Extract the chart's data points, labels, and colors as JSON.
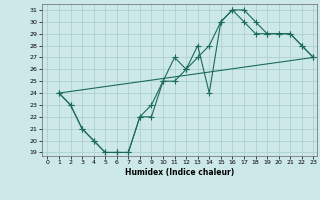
{
  "xlabel": "Humidex (Indice chaleur)",
  "bg_color": "#cde8e8",
  "grid_color": "#aacccc",
  "line_color": "#1a6b5a",
  "xlim": [
    -0.5,
    23.3
  ],
  "ylim": [
    18.7,
    31.5
  ],
  "xticks": [
    0,
    1,
    2,
    3,
    4,
    5,
    6,
    7,
    8,
    9,
    10,
    11,
    12,
    13,
    14,
    15,
    16,
    17,
    18,
    19,
    20,
    21,
    22,
    23
  ],
  "yticks": [
    19,
    20,
    21,
    22,
    23,
    24,
    25,
    26,
    27,
    28,
    29,
    30,
    31
  ],
  "line1_x": [
    1,
    2,
    3,
    4,
    5,
    6,
    7,
    8,
    9,
    10,
    11,
    12,
    13,
    14,
    15,
    16,
    17,
    18,
    19,
    20,
    21,
    22,
    23
  ],
  "line1_y": [
    24,
    23,
    21,
    20,
    19,
    19,
    19,
    22,
    22,
    25,
    27,
    26,
    28,
    24,
    30,
    31,
    31,
    30,
    29,
    29,
    29,
    28,
    27
  ],
  "line2_x": [
    1,
    2,
    3,
    4,
    5,
    6,
    7,
    8,
    9,
    10,
    11,
    12,
    13,
    14,
    15,
    16,
    17,
    18,
    19,
    20,
    21,
    22,
    23
  ],
  "line2_y": [
    24,
    23,
    21,
    20,
    19,
    19,
    19,
    22,
    23,
    25,
    25,
    26,
    27,
    28,
    30,
    31,
    30,
    29,
    29,
    29,
    29,
    28,
    27
  ],
  "line3_x": [
    1,
    23
  ],
  "line3_y": [
    24,
    27
  ]
}
